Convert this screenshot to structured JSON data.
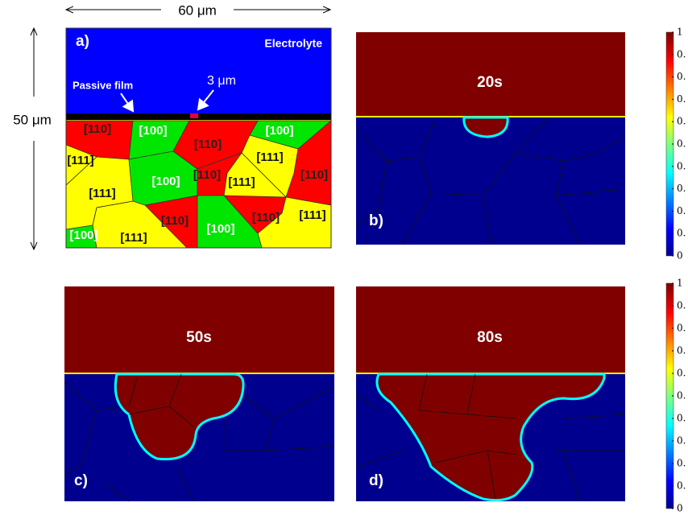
{
  "panel_a": {
    "label": "a)",
    "width_label": "60 μm",
    "height_label": "50 μm",
    "electrolyte": "Electrolyte",
    "passive_film": "Passive film",
    "opening": "3 μm",
    "grains": [
      "[110]",
      "[100]",
      "[110]",
      "[100]",
      "[111]",
      "[111]",
      "[100]",
      "[110]",
      "[111]",
      "[111]",
      "[110]",
      "[110]",
      "[100]",
      "[110]",
      "[111]",
      "[100]",
      "[111]"
    ]
  },
  "panels": [
    {
      "label": "b)",
      "time": "20s"
    },
    {
      "label": "c)",
      "time": "50s"
    },
    {
      "label": "d)",
      "time": "80s"
    }
  ],
  "colorbars": [
    {
      "ticks": [
        "1",
        "0.",
        "0.",
        "0.",
        "0.",
        "0.",
        "0.",
        "0.",
        "0.",
        "0.",
        "0"
      ]
    },
    {
      "ticks": [
        "1",
        "0.",
        "0.",
        "0.",
        "0.",
        "0.",
        "0.",
        "0.",
        "0.",
        "0.",
        "0"
      ]
    }
  ]
}
